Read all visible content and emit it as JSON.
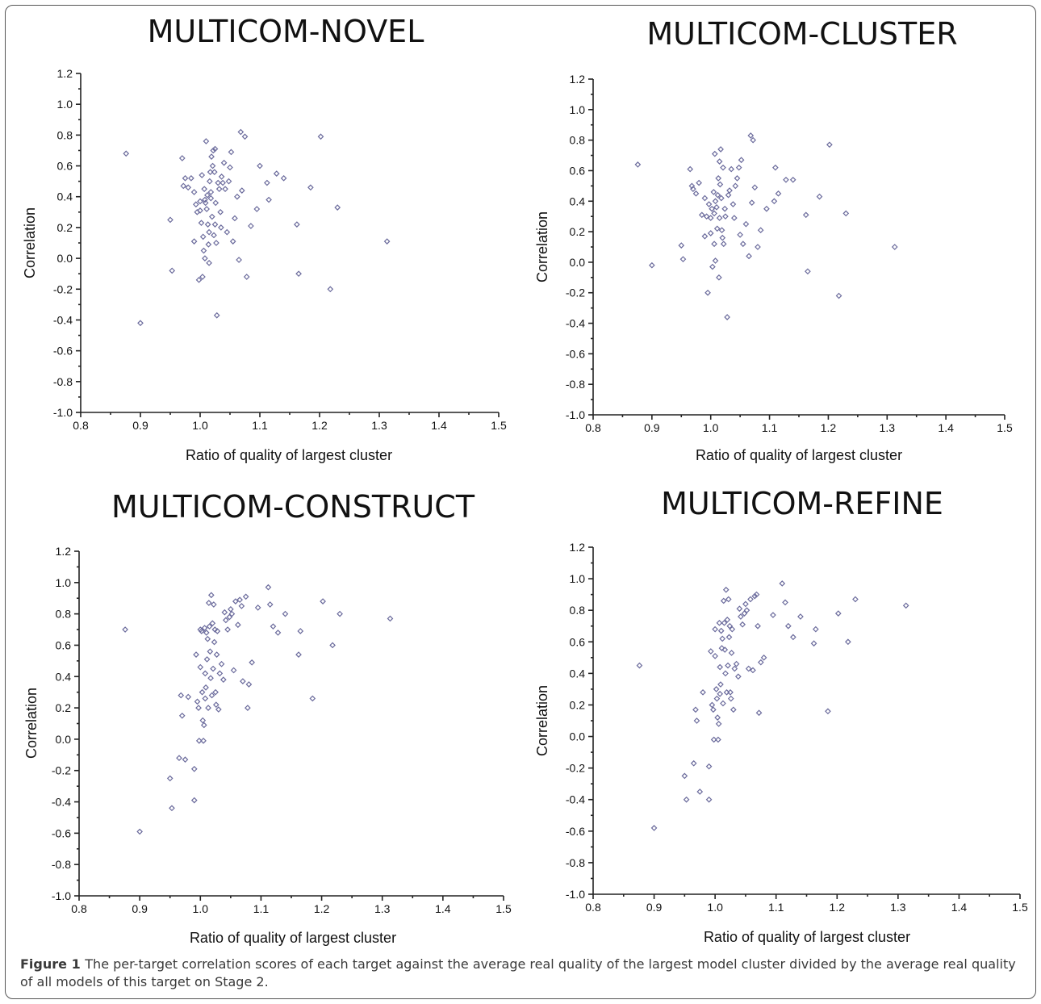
{
  "caption": {
    "label": "Figure 1",
    "text": "The per-target correlation scores of each target against the average real quality of the largest model cluster divided by the average real quality of all models of this target on Stage 2."
  },
  "colors": {
    "marker": "#6b6b9c",
    "axis": "#222222",
    "border": "#555555"
  },
  "chart_data": [
    {
      "type": "scatter",
      "title": "MULTICOM-NOVEL",
      "xlabel": "Ratio of quality of largest cluster",
      "ylabel": "Correlation",
      "xlim": [
        0.8,
        1.5
      ],
      "ylim": [
        -1.0,
        1.2
      ],
      "xticks": [
        "0.8",
        "0.9",
        "1.0",
        "1.1",
        "1.2",
        "1.3",
        "1.4",
        "1.5"
      ],
      "yticks": [
        "1.2",
        "1.0",
        "0.8",
        "0.6",
        "0.4",
        "0.2",
        "0.0",
        "-0.2",
        "-0.4",
        "-0.6",
        "-0.8",
        "-1.0"
      ],
      "grid": false,
      "points": [
        [
          0.876,
          0.68
        ],
        [
          0.9,
          -0.42
        ],
        [
          0.95,
          0.25
        ],
        [
          0.953,
          -0.08
        ],
        [
          0.97,
          0.65
        ],
        [
          0.972,
          0.47
        ],
        [
          0.975,
          0.52
        ],
        [
          0.98,
          0.46
        ],
        [
          0.985,
          0.52
        ],
        [
          0.99,
          0.43
        ],
        [
          0.99,
          0.11
        ],
        [
          0.993,
          0.35
        ],
        [
          0.995,
          0.3
        ],
        [
          0.998,
          -0.14
        ],
        [
          1.0,
          0.37
        ],
        [
          1.0,
          0.31
        ],
        [
          1.002,
          0.23
        ],
        [
          1.003,
          0.54
        ],
        [
          1.004,
          -0.12
        ],
        [
          1.005,
          0.14
        ],
        [
          1.006,
          0.05
        ],
        [
          1.007,
          0.45
        ],
        [
          1.008,
          0.38
        ],
        [
          1.008,
          0.0
        ],
        [
          1.009,
          0.36
        ],
        [
          1.01,
          0.76
        ],
        [
          1.011,
          0.32
        ],
        [
          1.012,
          0.41
        ],
        [
          1.013,
          0.22
        ],
        [
          1.014,
          0.09
        ],
        [
          1.015,
          -0.03
        ],
        [
          1.015,
          0.17
        ],
        [
          1.016,
          0.5
        ],
        [
          1.017,
          0.56
        ],
        [
          1.018,
          0.43
        ],
        [
          1.018,
          0.39
        ],
        [
          1.019,
          0.66
        ],
        [
          1.02,
          0.27
        ],
        [
          1.021,
          0.6
        ],
        [
          1.022,
          0.7
        ],
        [
          1.023,
          0.15
        ],
        [
          1.024,
          0.56
        ],
        [
          1.025,
          0.71
        ],
        [
          1.025,
          0.22
        ],
        [
          1.026,
          0.36
        ],
        [
          1.027,
          0.1
        ],
        [
          1.028,
          -0.37
        ],
        [
          1.03,
          0.49
        ],
        [
          1.032,
          0.45
        ],
        [
          1.034,
          0.3
        ],
        [
          1.035,
          0.2
        ],
        [
          1.036,
          0.53
        ],
        [
          1.038,
          0.49
        ],
        [
          1.04,
          0.62
        ],
        [
          1.042,
          0.45
        ],
        [
          1.045,
          0.17
        ],
        [
          1.048,
          0.5
        ],
        [
          1.05,
          0.59
        ],
        [
          1.052,
          0.69
        ],
        [
          1.055,
          0.11
        ],
        [
          1.058,
          0.26
        ],
        [
          1.062,
          0.4
        ],
        [
          1.065,
          -0.01
        ],
        [
          1.068,
          0.82
        ],
        [
          1.07,
          0.44
        ],
        [
          1.075,
          0.79
        ],
        [
          1.078,
          -0.12
        ],
        [
          1.085,
          0.21
        ],
        [
          1.095,
          0.32
        ],
        [
          1.1,
          0.6
        ],
        [
          1.112,
          0.49
        ],
        [
          1.115,
          0.38
        ],
        [
          1.128,
          0.55
        ],
        [
          1.14,
          0.52
        ],
        [
          1.162,
          0.22
        ],
        [
          1.165,
          -0.1
        ],
        [
          1.185,
          0.46
        ],
        [
          1.202,
          0.79
        ],
        [
          1.218,
          -0.2
        ],
        [
          1.23,
          0.33
        ],
        [
          1.313,
          0.11
        ]
      ]
    },
    {
      "type": "scatter",
      "title": "MULTICOM-CLUSTER",
      "xlabel": "Ratio of quality of largest cluster",
      "ylabel": "Correlation",
      "xlim": [
        0.8,
        1.5
      ],
      "ylim": [
        -1.0,
        1.2
      ],
      "xticks": [
        "0.8",
        "0.9",
        "1.0",
        "1.1",
        "1.2",
        "1.3",
        "1.4",
        "1.5"
      ],
      "yticks": [
        "1.2",
        "1.0",
        "0.8",
        "0.6",
        "0.4",
        "0.2",
        "0.0",
        "-0.2",
        "-0.4",
        "-0.6",
        "-0.8",
        "-1.0"
      ],
      "grid": false,
      "points": [
        [
          0.876,
          0.64
        ],
        [
          0.9,
          -0.02
        ],
        [
          0.95,
          0.11
        ],
        [
          0.953,
          0.02
        ],
        [
          0.965,
          0.61
        ],
        [
          0.968,
          0.5
        ],
        [
          0.97,
          0.48
        ],
        [
          0.975,
          0.45
        ],
        [
          0.98,
          0.52
        ],
        [
          0.985,
          0.31
        ],
        [
          0.99,
          0.17
        ],
        [
          0.99,
          0.42
        ],
        [
          0.993,
          0.3
        ],
        [
          0.995,
          -0.2
        ],
        [
          0.997,
          0.38
        ],
        [
          1.0,
          0.29
        ],
        [
          1.0,
          0.19
        ],
        [
          1.002,
          0.35
        ],
        [
          1.003,
          -0.03
        ],
        [
          1.005,
          0.46
        ],
        [
          1.006,
          0.32
        ],
        [
          1.006,
          0.12
        ],
        [
          1.007,
          0.71
        ],
        [
          1.008,
          0.4
        ],
        [
          1.008,
          0.01
        ],
        [
          1.01,
          0.36
        ],
        [
          1.011,
          0.22
        ],
        [
          1.012,
          0.44
        ],
        [
          1.013,
          0.55
        ],
        [
          1.014,
          -0.1
        ],
        [
          1.015,
          0.29
        ],
        [
          1.015,
          0.66
        ],
        [
          1.016,
          0.51
        ],
        [
          1.017,
          0.74
        ],
        [
          1.018,
          0.42
        ],
        [
          1.019,
          0.21
        ],
        [
          1.02,
          0.16
        ],
        [
          1.021,
          0.62
        ],
        [
          1.022,
          0.12
        ],
        [
          1.024,
          0.35
        ],
        [
          1.025,
          0.3
        ],
        [
          1.028,
          -0.36
        ],
        [
          1.03,
          0.44
        ],
        [
          1.032,
          0.47
        ],
        [
          1.035,
          0.61
        ],
        [
          1.038,
          0.38
        ],
        [
          1.04,
          0.29
        ],
        [
          1.042,
          0.5
        ],
        [
          1.045,
          0.55
        ],
        [
          1.048,
          0.62
        ],
        [
          1.05,
          0.18
        ],
        [
          1.052,
          0.67
        ],
        [
          1.055,
          0.12
        ],
        [
          1.06,
          0.25
        ],
        [
          1.065,
          0.04
        ],
        [
          1.068,
          0.83
        ],
        [
          1.07,
          0.39
        ],
        [
          1.072,
          0.8
        ],
        [
          1.075,
          0.49
        ],
        [
          1.08,
          0.1
        ],
        [
          1.085,
          0.21
        ],
        [
          1.095,
          0.35
        ],
        [
          1.108,
          0.4
        ],
        [
          1.11,
          0.62
        ],
        [
          1.115,
          0.45
        ],
        [
          1.128,
          0.54
        ],
        [
          1.14,
          0.54
        ],
        [
          1.162,
          0.31
        ],
        [
          1.165,
          -0.06
        ],
        [
          1.185,
          0.43
        ],
        [
          1.202,
          0.77
        ],
        [
          1.218,
          -0.22
        ],
        [
          1.23,
          0.32
        ],
        [
          1.313,
          0.1
        ]
      ]
    },
    {
      "type": "scatter",
      "title": "MULTICOM-CONSTRUCT",
      "xlabel": "Ratio of quality of largest cluster",
      "ylabel": "Correlation",
      "xlim": [
        0.8,
        1.5
      ],
      "ylim": [
        -1.0,
        1.2
      ],
      "xticks": [
        "0.8",
        "0.9",
        "1.0",
        "1.1",
        "1.2",
        "1.3",
        "1.4",
        "1.5"
      ],
      "yticks": [
        "1.2",
        "1.0",
        "0.8",
        "0.6",
        "0.4",
        "0.2",
        "0.0",
        "-0.2",
        "-0.4",
        "-0.6",
        "-0.8",
        "-1.0"
      ],
      "grid": false,
      "points": [
        [
          0.876,
          0.7
        ],
        [
          0.9,
          -0.59
        ],
        [
          0.95,
          -0.25
        ],
        [
          0.953,
          -0.44
        ],
        [
          0.965,
          -0.12
        ],
        [
          0.968,
          0.28
        ],
        [
          0.97,
          0.15
        ],
        [
          0.975,
          -0.13
        ],
        [
          0.98,
          0.27
        ],
        [
          0.99,
          -0.19
        ],
        [
          0.99,
          -0.39
        ],
        [
          0.993,
          0.54
        ],
        [
          0.995,
          0.24
        ],
        [
          0.997,
          0.2
        ],
        [
          0.998,
          -0.01
        ],
        [
          1.0,
          0.7
        ],
        [
          1.0,
          0.46
        ],
        [
          1.002,
          0.69
        ],
        [
          1.003,
          0.3
        ],
        [
          1.004,
          0.12
        ],
        [
          1.005,
          -0.01
        ],
        [
          1.006,
          0.09
        ],
        [
          1.007,
          0.71
        ],
        [
          1.008,
          0.42
        ],
        [
          1.008,
          0.26
        ],
        [
          1.009,
          0.33
        ],
        [
          1.01,
          0.68
        ],
        [
          1.011,
          0.51
        ],
        [
          1.012,
          0.64
        ],
        [
          1.013,
          0.2
        ],
        [
          1.014,
          0.87
        ],
        [
          1.015,
          0.72
        ],
        [
          1.016,
          0.56
        ],
        [
          1.017,
          0.39
        ],
        [
          1.018,
          0.92
        ],
        [
          1.019,
          0.28
        ],
        [
          1.02,
          0.74
        ],
        [
          1.021,
          0.45
        ],
        [
          1.022,
          0.86
        ],
        [
          1.023,
          0.62
        ],
        [
          1.024,
          0.7
        ],
        [
          1.025,
          0.3
        ],
        [
          1.026,
          0.22
        ],
        [
          1.027,
          0.54
        ],
        [
          1.028,
          0.69
        ],
        [
          1.03,
          0.19
        ],
        [
          1.032,
          0.42
        ],
        [
          1.035,
          0.48
        ],
        [
          1.038,
          0.38
        ],
        [
          1.04,
          0.81
        ],
        [
          1.042,
          0.76
        ],
        [
          1.045,
          0.7
        ],
        [
          1.048,
          0.78
        ],
        [
          1.05,
          0.83
        ],
        [
          1.052,
          0.8
        ],
        [
          1.055,
          0.44
        ],
        [
          1.058,
          0.88
        ],
        [
          1.062,
          0.73
        ],
        [
          1.065,
          0.89
        ],
        [
          1.068,
          0.85
        ],
        [
          1.07,
          0.37
        ],
        [
          1.075,
          0.91
        ],
        [
          1.078,
          0.2
        ],
        [
          1.08,
          0.35
        ],
        [
          1.085,
          0.49
        ],
        [
          1.095,
          0.84
        ],
        [
          1.112,
          0.97
        ],
        [
          1.115,
          0.86
        ],
        [
          1.12,
          0.72
        ],
        [
          1.128,
          0.68
        ],
        [
          1.14,
          0.8
        ],
        [
          1.162,
          0.54
        ],
        [
          1.165,
          0.69
        ],
        [
          1.185,
          0.26
        ],
        [
          1.202,
          0.88
        ],
        [
          1.218,
          0.6
        ],
        [
          1.23,
          0.8
        ],
        [
          1.313,
          0.77
        ]
      ]
    },
    {
      "type": "scatter",
      "title": "MULTICOM-REFINE",
      "xlabel": "Ratio of quality of largest cluster",
      "ylabel": "Correlation",
      "xlim": [
        0.8,
        1.5
      ],
      "ylim": [
        -1.0,
        1.2
      ],
      "xticks": [
        "0.8",
        "0.9",
        "1.0",
        "1.1",
        "1.2",
        "1.3",
        "1.4",
        "1.5"
      ],
      "yticks": [
        "1.2",
        "1.0",
        "0.8",
        "0.6",
        "0.4",
        "0.2",
        "0.0",
        "-0.2",
        "-0.4",
        "-0.6",
        "-0.8",
        "-1.0"
      ],
      "grid": false,
      "points": [
        [
          0.876,
          0.45
        ],
        [
          0.9,
          -0.58
        ],
        [
          0.95,
          -0.25
        ],
        [
          0.953,
          -0.4
        ],
        [
          0.965,
          -0.17
        ],
        [
          0.968,
          0.17
        ],
        [
          0.97,
          0.1
        ],
        [
          0.975,
          -0.35
        ],
        [
          0.98,
          0.28
        ],
        [
          0.99,
          -0.19
        ],
        [
          0.99,
          -0.4
        ],
        [
          0.993,
          0.54
        ],
        [
          0.995,
          0.2
        ],
        [
          0.997,
          0.17
        ],
        [
          0.998,
          -0.02
        ],
        [
          1.0,
          0.68
        ],
        [
          1.0,
          0.51
        ],
        [
          1.002,
          0.3
        ],
        [
          1.003,
          0.24
        ],
        [
          1.004,
          0.12
        ],
        [
          1.005,
          -0.02
        ],
        [
          1.006,
          0.08
        ],
        [
          1.007,
          0.72
        ],
        [
          1.008,
          0.44
        ],
        [
          1.008,
          0.27
        ],
        [
          1.009,
          0.33
        ],
        [
          1.01,
          0.67
        ],
        [
          1.011,
          0.56
        ],
        [
          1.012,
          0.62
        ],
        [
          1.013,
          0.21
        ],
        [
          1.014,
          0.86
        ],
        [
          1.015,
          0.72
        ],
        [
          1.016,
          0.55
        ],
        [
          1.017,
          0.4
        ],
        [
          1.018,
          0.93
        ],
        [
          1.019,
          0.28
        ],
        [
          1.02,
          0.74
        ],
        [
          1.021,
          0.45
        ],
        [
          1.022,
          0.87
        ],
        [
          1.023,
          0.63
        ],
        [
          1.024,
          0.7
        ],
        [
          1.025,
          0.28
        ],
        [
          1.026,
          0.24
        ],
        [
          1.027,
          0.53
        ],
        [
          1.028,
          0.68
        ],
        [
          1.03,
          0.17
        ],
        [
          1.032,
          0.43
        ],
        [
          1.035,
          0.46
        ],
        [
          1.038,
          0.38
        ],
        [
          1.04,
          0.81
        ],
        [
          1.042,
          0.76
        ],
        [
          1.045,
          0.71
        ],
        [
          1.048,
          0.78
        ],
        [
          1.05,
          0.84
        ],
        [
          1.052,
          0.8
        ],
        [
          1.055,
          0.43
        ],
        [
          1.058,
          0.87
        ],
        [
          1.062,
          0.42
        ],
        [
          1.065,
          0.89
        ],
        [
          1.068,
          0.9
        ],
        [
          1.07,
          0.7
        ],
        [
          1.072,
          0.15
        ],
        [
          1.075,
          0.47
        ],
        [
          1.08,
          0.5
        ],
        [
          1.095,
          0.77
        ],
        [
          1.11,
          0.97
        ],
        [
          1.115,
          0.85
        ],
        [
          1.12,
          0.7
        ],
        [
          1.128,
          0.63
        ],
        [
          1.14,
          0.76
        ],
        [
          1.162,
          0.59
        ],
        [
          1.165,
          0.68
        ],
        [
          1.185,
          0.16
        ],
        [
          1.202,
          0.78
        ],
        [
          1.218,
          0.6
        ],
        [
          1.23,
          0.87
        ],
        [
          1.313,
          0.83
        ]
      ]
    }
  ]
}
